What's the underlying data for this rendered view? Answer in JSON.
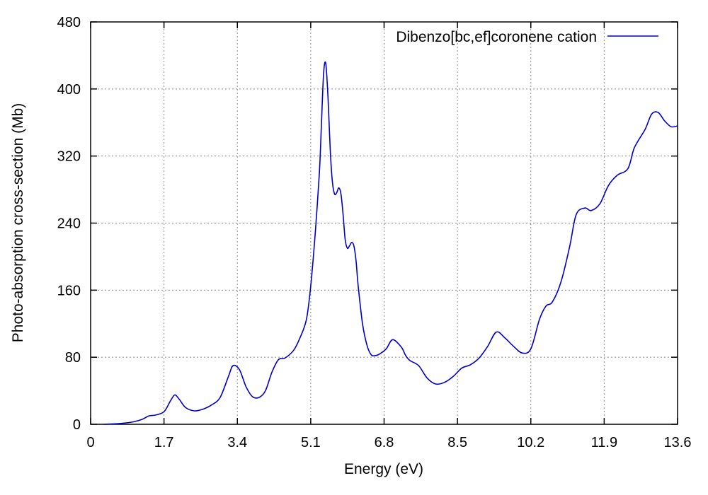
{
  "chart_data": {
    "type": "line",
    "title": "",
    "xlabel": "Energy (eV)",
    "ylabel": "Photo-absorption cross-section (Mb)",
    "xlim": [
      0,
      13.6
    ],
    "ylim": [
      0,
      480
    ],
    "xticks": [
      0,
      1.7,
      3.4,
      5.1,
      6.8,
      8.5,
      10.2,
      11.9,
      13.6
    ],
    "xtick_labels": [
      "0",
      "1.7",
      "3.4",
      "5.1",
      "6.8",
      "8.5",
      "10.2",
      "11.9",
      "13.6"
    ],
    "yticks": [
      0,
      80,
      160,
      240,
      320,
      400,
      480
    ],
    "ytick_labels": [
      "0",
      "80",
      "160",
      "240",
      "320",
      "400",
      "480"
    ],
    "grid": true,
    "legend_position": "top-right",
    "series": [
      {
        "name": "Dibenzo[bc,ef]coronene cation",
        "color": "#0000cc",
        "x": [
          0.3,
          0.7,
          1.0,
          1.2,
          1.35,
          1.5,
          1.7,
          1.85,
          1.95,
          2.05,
          2.2,
          2.4,
          2.6,
          2.8,
          3.0,
          3.2,
          3.3,
          3.45,
          3.6,
          3.75,
          3.9,
          4.05,
          4.2,
          4.35,
          4.5,
          4.7,
          4.85,
          5.0,
          5.1,
          5.2,
          5.3,
          5.35,
          5.4,
          5.45,
          5.5,
          5.55,
          5.6,
          5.65,
          5.7,
          5.75,
          5.8,
          5.85,
          5.9,
          5.95,
          6.0,
          6.05,
          6.1,
          6.15,
          6.2,
          6.3,
          6.4,
          6.5,
          6.6,
          6.7,
          6.85,
          7.0,
          7.2,
          7.3,
          7.4,
          7.6,
          7.8,
          8.0,
          8.2,
          8.4,
          8.6,
          8.8,
          9.0,
          9.2,
          9.4,
          9.6,
          9.8,
          10.0,
          10.2,
          10.4,
          10.55,
          10.7,
          10.9,
          11.1,
          11.25,
          11.45,
          11.6,
          11.8,
          12.0,
          12.2,
          12.45,
          12.6,
          12.85,
          13.0,
          13.15,
          13.3,
          13.45,
          13.6
        ],
        "y": [
          0,
          1,
          3,
          6,
          10,
          11,
          15,
          28,
          35,
          30,
          20,
          16,
          18,
          23,
          32,
          58,
          70,
          65,
          45,
          33,
          32,
          40,
          62,
          77,
          79,
          88,
          103,
          125,
          165,
          225,
          300,
          360,
          420,
          430,
          390,
          330,
          290,
          275,
          276,
          282,
          275,
          250,
          220,
          210,
          213,
          217,
          213,
          195,
          165,
          120,
          95,
          83,
          82,
          84,
          90,
          101,
          92,
          82,
          76,
          70,
          55,
          48,
          50,
          57,
          67,
          71,
          79,
          93,
          110,
          103,
          93,
          85,
          90,
          125,
          141,
          146,
          170,
          212,
          250,
          258,
          255,
          263,
          285,
          297,
          305,
          330,
          352,
          370,
          372,
          362,
          355,
          356
        ]
      }
    ]
  }
}
